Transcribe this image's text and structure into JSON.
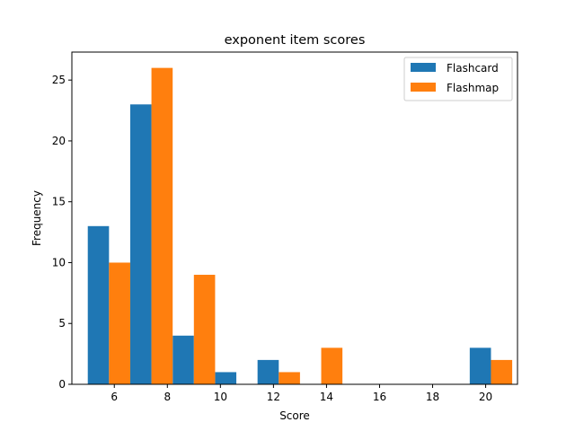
{
  "chart_data": {
    "type": "bar",
    "title": "exponent item scores",
    "xlabel": "Score",
    "ylabel": "Frequency",
    "x_ticks": [
      6,
      8,
      10,
      12,
      14,
      16,
      18,
      20
    ],
    "y_ticks": [
      0,
      5,
      10,
      15,
      20,
      25
    ],
    "xlim": [
      4.4,
      21.2
    ],
    "ylim": [
      0,
      27.3
    ],
    "bin_edges": [
      5,
      6.6,
      8.2,
      9.8,
      11.4,
      13,
      14.6,
      16.2,
      17.8,
      19.4,
      21
    ],
    "grid": false,
    "legend_position": "top-right",
    "series": [
      {
        "name": "Flashcard",
        "color": "#1f77b4",
        "values": [
          13,
          23,
          4,
          1,
          2,
          0,
          0,
          0,
          0,
          3
        ]
      },
      {
        "name": "Flashmap",
        "color": "#ff7f0e",
        "values": [
          10,
          26,
          9,
          0,
          1,
          3,
          0,
          0,
          0,
          2
        ]
      }
    ]
  }
}
